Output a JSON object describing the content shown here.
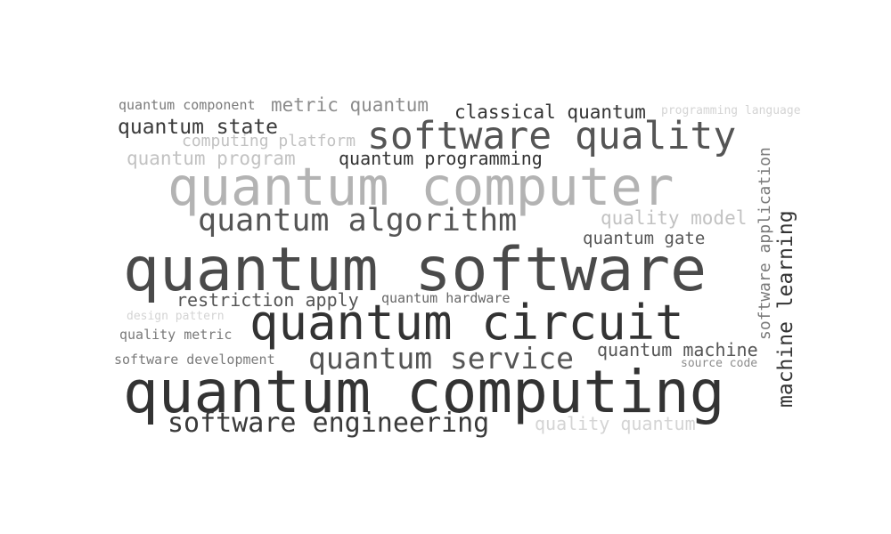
{
  "words": [
    {
      "text": "quantum software",
      "color": "#4a4a4a"
    },
    {
      "text": "quantum computing",
      "color": "#333333"
    },
    {
      "text": "quantum computer",
      "color": "#b3b3b3"
    },
    {
      "text": "quantum circuit",
      "color": "#333333"
    },
    {
      "text": "software quality",
      "color": "#555555"
    },
    {
      "text": "quantum algorithm",
      "color": "#555555"
    },
    {
      "text": "quantum service",
      "color": "#555555"
    },
    {
      "text": "software engineering",
      "color": "#3a3a3a"
    },
    {
      "text": "machine learning",
      "color": "#333333"
    },
    {
      "text": "software application",
      "color": "#7a7a7a"
    },
    {
      "text": "quantum state",
      "color": "#3a3a3a"
    },
    {
      "text": "classical quantum",
      "color": "#333333"
    },
    {
      "text": "metric quantum",
      "color": "#8c8c8c"
    },
    {
      "text": "quantum programming",
      "color": "#333333"
    },
    {
      "text": "quantum program",
      "color": "#c2c2c2"
    },
    {
      "text": "computing platform",
      "color": "#c2c2c2"
    },
    {
      "text": "quality model",
      "color": "#c2c2c2"
    },
    {
      "text": "quantum gate",
      "color": "#555555"
    },
    {
      "text": "restriction apply",
      "color": "#555555"
    },
    {
      "text": "quantum hardware",
      "color": "#666666"
    },
    {
      "text": "quantum machine",
      "color": "#555555"
    },
    {
      "text": "quality quantum",
      "color": "#d4d4d4"
    },
    {
      "text": "quantum component",
      "color": "#7a7a7a"
    },
    {
      "text": "programming language",
      "color": "#d4d4d4"
    },
    {
      "text": "design pattern",
      "color": "#d4d4d4"
    },
    {
      "text": "quality metric",
      "color": "#7a7a7a"
    },
    {
      "text": "software development",
      "color": "#7a7a7a"
    },
    {
      "text": "source code",
      "color": "#8c8c8c"
    }
  ]
}
